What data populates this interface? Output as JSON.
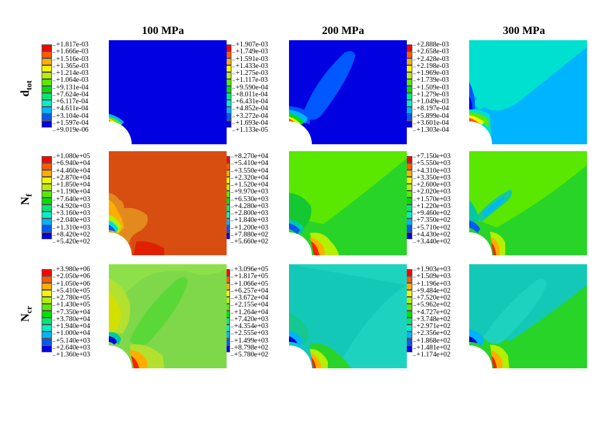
{
  "columns": [
    "100 MPa",
    "200 MPa",
    "300 MPa"
  ],
  "rows": [
    {
      "symbol": "d",
      "sub": "tot"
    },
    {
      "symbol": "N",
      "sub": "f"
    },
    {
      "symbol": "N",
      "sub": "cr"
    }
  ],
  "legend_colors": [
    "#ff0000",
    "#ff5a00",
    "#ffae00",
    "#f5f500",
    "#b4f000",
    "#5ae800",
    "#00e000",
    "#00e878",
    "#00f0c8",
    "#00b4ff",
    "#0058ff",
    "#0000e0"
  ],
  "legends": [
    [
      "+1.817e-03",
      "+1.666e-03",
      "+1.516e-03",
      "+1.365e-03",
      "+1.214e-03",
      "+1.064e-03",
      "+9.131e-04",
      "+7.624e-04",
      "+6.117e-04",
      "+4.611e-04",
      "+3.104e-04",
      "+1.597e-04",
      "+9.019e-06"
    ],
    [
      "+1.907e-03",
      "+1.749e-03",
      "+1.591e-03",
      "+1.433e-03",
      "+1.275e-03",
      "+1.117e-03",
      "+9.590e-04",
      "+8.011e-04",
      "+6.431e-04",
      "+4.852e-04",
      "+3.272e-04",
      "+1.693e-04",
      "+1.133e-05"
    ],
    [
      "+2.888e-03",
      "+2.658e-03",
      "+2.428e-03",
      "+2.198e-03",
      "+1.969e-03",
      "+1.739e-03",
      "+1.509e-03",
      "+1.279e-03",
      "+1.049e-03",
      "+8.197e-04",
      "+5.899e-04",
      "+3.601e-04",
      "+1.303e-04"
    ],
    [
      "+1.080e+05",
      "+6.940e+04",
      "+4.460e+04",
      "+2.870e+04",
      "+1.850e+04",
      "+1.190e+04",
      "+7.640e+03",
      "+4.920e+03",
      "+3.160e+03",
      "+2.040e+03",
      "+1.310e+03",
      "+8.420e+02",
      "+5.420e+02"
    ],
    [
      "+8.270e+04",
      "+5.410e+04",
      "+3.550e+04",
      "+2.320e+04",
      "+1.520e+04",
      "+9.970e+03",
      "+6.530e+03",
      "+4.280e+03",
      "+2.800e+03",
      "+1.840e+03",
      "+1.200e+03",
      "+7.880e+02",
      "+5.660e+02"
    ],
    [
      "+7.150e+03",
      "+5.550e+03",
      "+4.310e+03",
      "+3.350e+03",
      "+2.600e+03",
      "+2.020e+03",
      "+1.570e+03",
      "+1.220e+03",
      "+9.460e+02",
      "+7.350e+02",
      "+5.710e+02",
      "+4.430e+02",
      "+3.440e+02"
    ],
    [
      "+3.980e+06",
      "+2.050e+06",
      "+1.050e+06",
      "+5.410e+05",
      "+2.780e+05",
      "+1.430e+05",
      "+7.350e+04",
      "+3.780e+04",
      "+1.940e+04",
      "+1.000e+04",
      "+5.140e+03",
      "+2.640e+03",
      "+1.360e+03"
    ],
    [
      "+3.096e+05",
      "+1.817e+05",
      "+1.066e+05",
      "+6.257e+04",
      "+3.672e+04",
      "+2.155e+04",
      "+1.264e+04",
      "+7.420e+03",
      "+4.354e+03",
      "+2.555e+03",
      "+1.499e+03",
      "+8.798e+02",
      "+5.780e+02"
    ],
    [
      "+1.903e+03",
      "+1.509e+03",
      "+1.196e+03",
      "+9.484e+02",
      "+7.520e+02",
      "+5.962e+02",
      "+4.727e+02",
      "+3.748e+02",
      "+2.971e+02",
      "+2.356e+02",
      "+1.868e+02",
      "+1.481e+02",
      "+1.174e+02"
    ]
  ]
}
